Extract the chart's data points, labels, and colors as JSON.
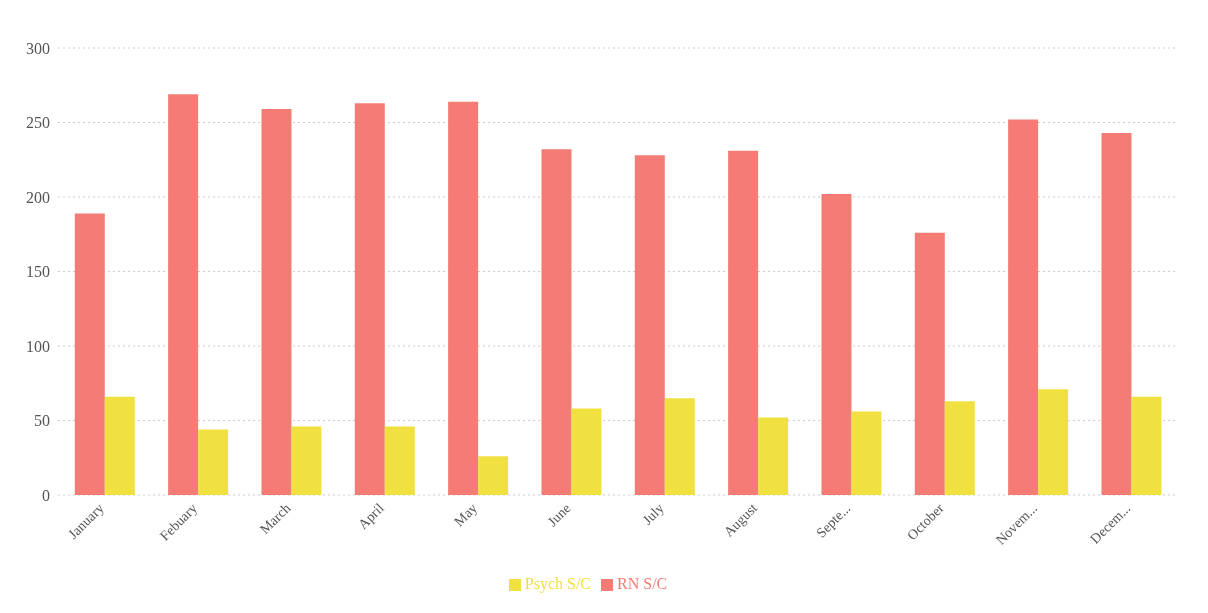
{
  "chart_data": {
    "type": "bar",
    "categories": [
      "January",
      "Febuary",
      "March",
      "April",
      "May",
      "June",
      "July",
      "August",
      "Septe...",
      "October",
      "Novem...",
      "Decem..."
    ],
    "series": [
      {
        "name": "RN S/C",
        "color": "#f47c74",
        "values": [
          189,
          269,
          259,
          263,
          264,
          232,
          228,
          231,
          202,
          176,
          252,
          243
        ]
      },
      {
        "name": "Psych S/C",
        "color": "#f0e040",
        "values": [
          66,
          44,
          46,
          46,
          26,
          58,
          65,
          52,
          56,
          63,
          71,
          66
        ]
      }
    ],
    "ylim": [
      0,
      300
    ],
    "yticks": [
      0,
      50,
      100,
      150,
      200,
      250,
      300
    ],
    "grid": "y",
    "legend": "bottom"
  }
}
